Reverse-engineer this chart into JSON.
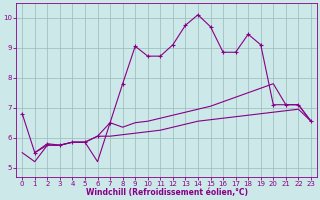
{
  "xlabel": "Windchill (Refroidissement éolien,°C)",
  "xlim": [
    -0.5,
    23.5
  ],
  "ylim": [
    4.7,
    10.5
  ],
  "xticks": [
    0,
    1,
    2,
    3,
    4,
    5,
    6,
    7,
    8,
    9,
    10,
    11,
    12,
    13,
    14,
    15,
    16,
    17,
    18,
    19,
    20,
    21,
    22,
    23
  ],
  "yticks": [
    5,
    6,
    7,
    8,
    9,
    10
  ],
  "bg_color": "#cce8e8",
  "line_color": "#880088",
  "grid_color": "#99bbbb",
  "line1_x": [
    0,
    1,
    2,
    3,
    4,
    5,
    6,
    7,
    8,
    9,
    10,
    11,
    12,
    13,
    14,
    15,
    16,
    17,
    18,
    19,
    20,
    21,
    22,
    23
  ],
  "line1_y": [
    6.8,
    5.5,
    5.8,
    5.75,
    5.85,
    5.85,
    6.05,
    6.5,
    7.8,
    9.05,
    8.72,
    8.72,
    9.1,
    9.75,
    10.1,
    9.7,
    8.85,
    8.85,
    9.45,
    9.1,
    7.1,
    7.1,
    7.1,
    6.55
  ],
  "line2_x": [
    0,
    1,
    2,
    3,
    4,
    5,
    6,
    7,
    8,
    9,
    10,
    11,
    12,
    13,
    14,
    15,
    16,
    17,
    18,
    19,
    20,
    21,
    22,
    23
  ],
  "line2_y": [
    5.5,
    5.2,
    5.75,
    5.75,
    5.85,
    5.85,
    5.2,
    6.5,
    6.35,
    6.5,
    6.55,
    6.65,
    6.75,
    6.85,
    6.95,
    7.05,
    7.2,
    7.35,
    7.5,
    7.65,
    7.8,
    7.1,
    7.1,
    6.55
  ],
  "line3_x": [
    1,
    2,
    3,
    4,
    5,
    6,
    7,
    8,
    9,
    10,
    11,
    12,
    13,
    14,
    15,
    16,
    17,
    18,
    19,
    20,
    21,
    22,
    23
  ],
  "line3_y": [
    5.5,
    5.75,
    5.75,
    5.85,
    5.85,
    6.05,
    6.05,
    6.1,
    6.15,
    6.2,
    6.25,
    6.35,
    6.45,
    6.55,
    6.6,
    6.65,
    6.7,
    6.75,
    6.8,
    6.85,
    6.9,
    6.95,
    6.55
  ]
}
